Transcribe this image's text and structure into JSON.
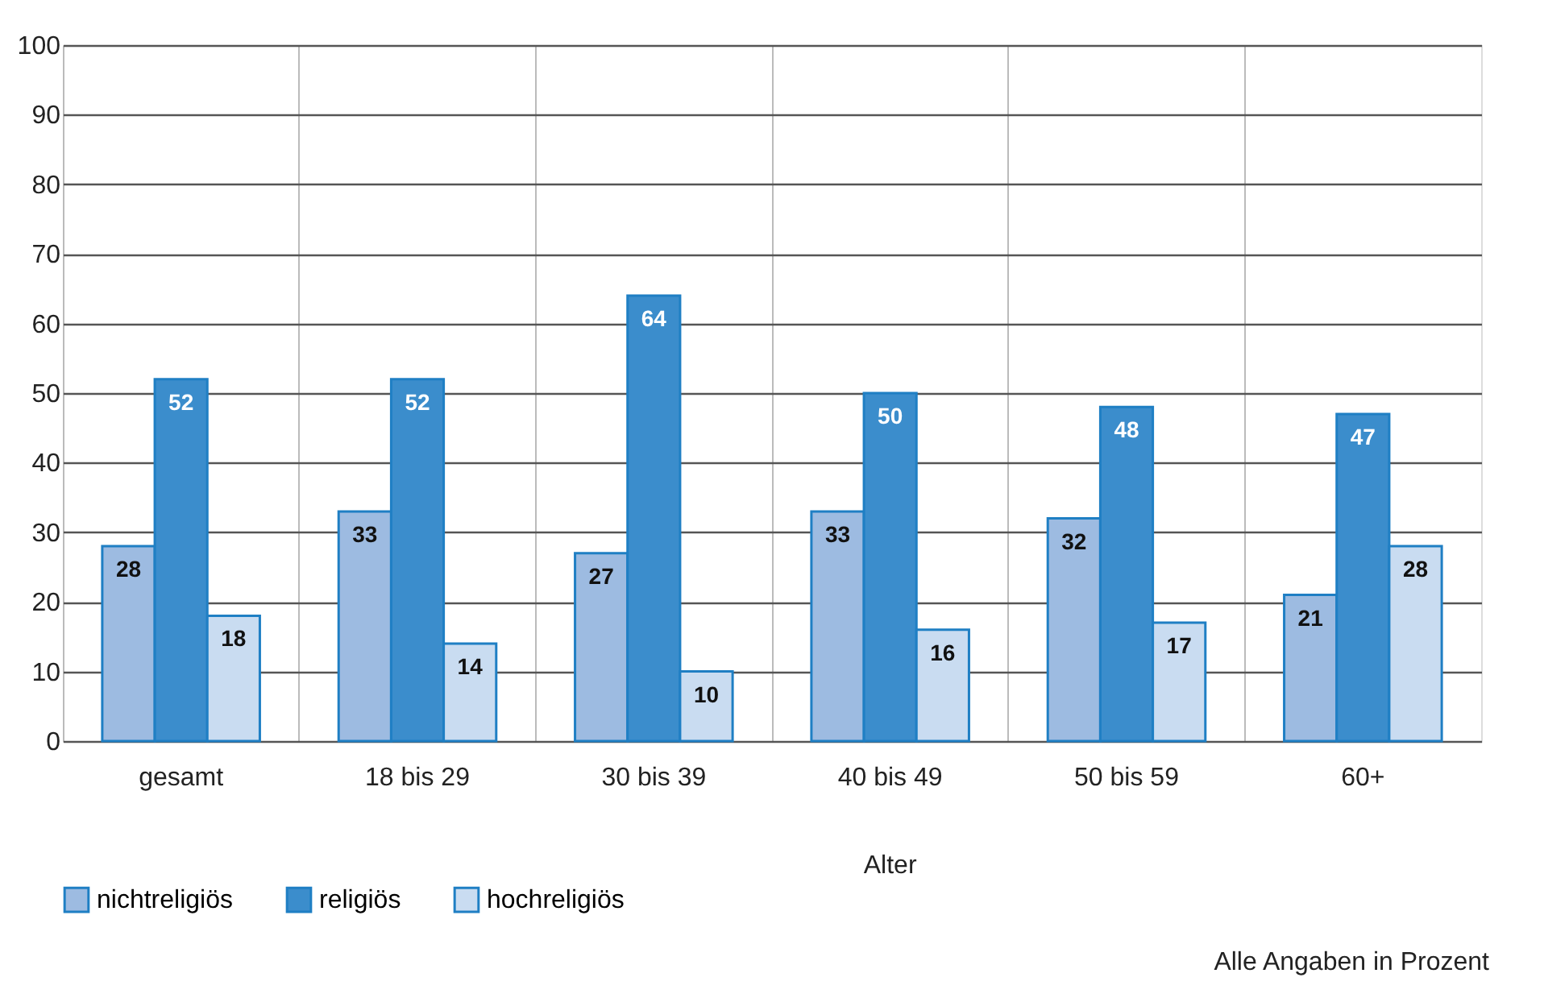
{
  "chart_data": {
    "type": "bar",
    "categories": [
      "gesamt",
      "18 bis 29",
      "30 bis 39",
      "40 bis 49",
      "50 bis 59",
      "60+"
    ],
    "series": [
      {
        "name": "nichtreligiös",
        "color": "#9dbbe1",
        "values": [
          28,
          33,
          27,
          33,
          32,
          21
        ]
      },
      {
        "name": "religiös",
        "color": "#3b8dcc",
        "values": [
          52,
          52,
          64,
          50,
          48,
          47
        ]
      },
      {
        "name": "hochreligiös",
        "color": "#c9dcf1",
        "values": [
          18,
          14,
          10,
          16,
          17,
          28
        ]
      }
    ],
    "ylim": [
      0,
      100
    ],
    "yticks": [
      0,
      10,
      20,
      30,
      40,
      50,
      60,
      70,
      80,
      90,
      100
    ],
    "grid": "y",
    "legend": "bottom",
    "data_labels": true,
    "annotations": [
      "Alter",
      "Alle Angaben in Prozent"
    ]
  }
}
